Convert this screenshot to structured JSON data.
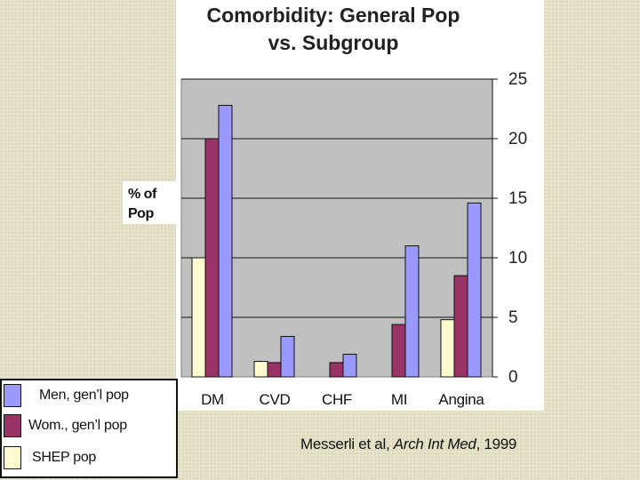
{
  "chart_data": {
    "type": "bar",
    "title_lines": [
      "Comorbidity: General Pop",
      "vs. Subgroup"
    ],
    "ylabel_lines": [
      "% of",
      "Pop"
    ],
    "categories": [
      "DM",
      "CVD",
      "CHF",
      "MI",
      "Angina"
    ],
    "series": [
      {
        "name": "SHEP pop",
        "color": "#fffbd0",
        "values": [
          10,
          1.3,
          0,
          0,
          4.8
        ]
      },
      {
        "name": "Wom., gen'l pop",
        "color": "#993366",
        "values": [
          20,
          1.2,
          1.2,
          4.4,
          8.5
        ]
      },
      {
        "name": "Men, gen'l pop",
        "color": "#9999ff",
        "values": [
          22.8,
          3.4,
          1.9,
          11,
          14.6
        ]
      }
    ],
    "ylim": [
      0,
      25
    ],
    "yticks": [
      "0",
      "5",
      "10",
      "15",
      "20",
      "25"
    ],
    "grid": true,
    "plot_background": "#c0c0c0",
    "legend_placement": "bottom-left"
  },
  "legend": {
    "items": [
      {
        "label": "Men, gen’l pop",
        "color": "#9999ff"
      },
      {
        "label": "Wom., gen’l pop",
        "color": "#993366"
      },
      {
        "label": "SHEP pop",
        "color": "#fffbd0"
      }
    ]
  },
  "citation": {
    "authors": "Messerli et al, ",
    "journal": "Arch Int Med",
    "year": ", 1999"
  }
}
